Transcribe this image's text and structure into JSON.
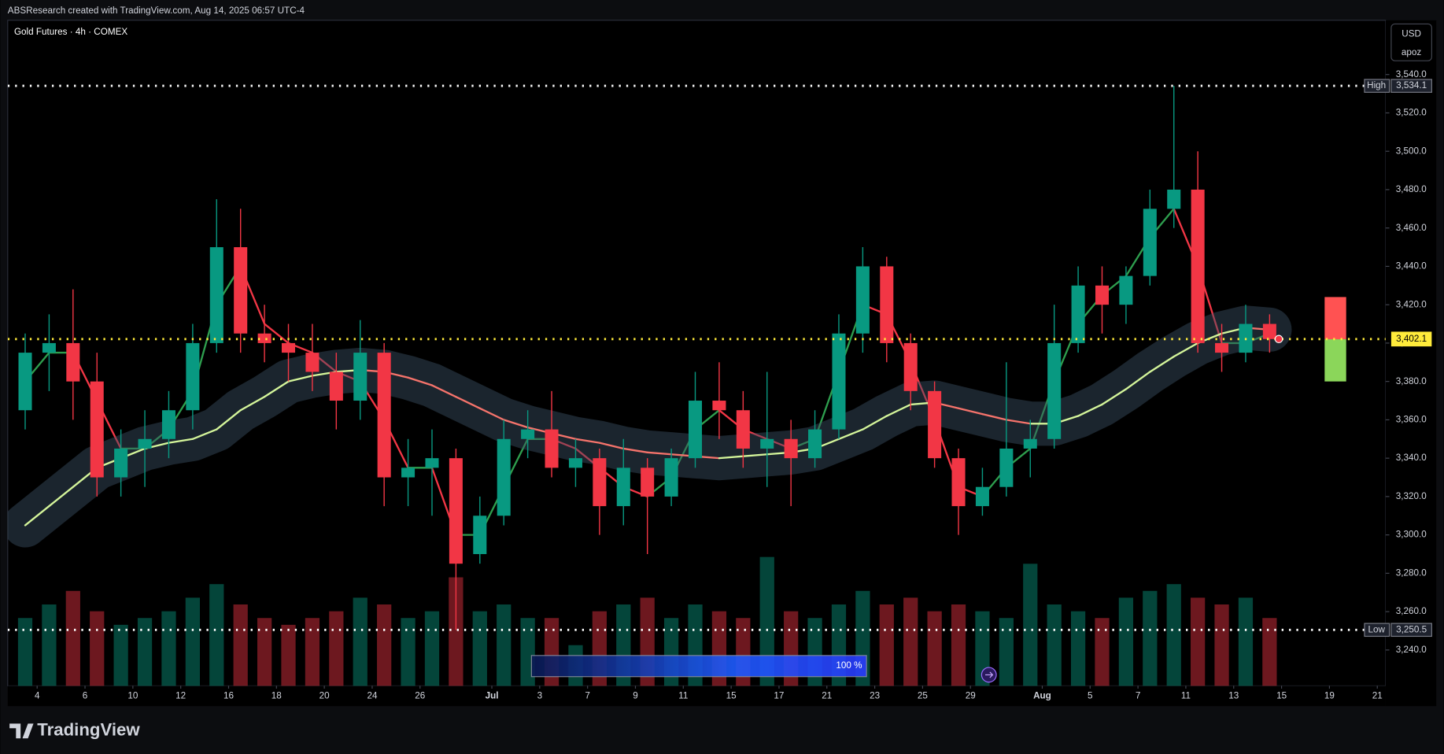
{
  "header": "ABSResearch created with TradingView.com, Aug 14, 2025 06:57 UTC-4",
  "brand": "TradingView",
  "currency": "USD",
  "unit": "apoz",
  "replay_label": "100 %",
  "chart_data": {
    "type": "candlestick",
    "title": "Gold Futures · 4h · COMEX",
    "x": [
      0,
      1,
      2,
      3,
      4,
      5,
      6,
      7,
      8,
      9,
      10,
      11,
      12,
      13,
      14,
      15,
      16,
      17,
      18,
      19,
      20,
      21,
      22,
      23,
      24,
      25,
      26,
      27,
      28,
      29,
      30,
      31,
      32,
      33,
      34,
      35,
      36,
      37,
      38,
      39,
      40,
      41,
      42,
      43,
      44,
      45,
      46,
      47,
      48,
      49,
      50,
      51,
      52
    ],
    "open": [
      3365,
      3395,
      3400,
      3380,
      3330,
      3345,
      3350,
      3365,
      3400,
      3450,
      3405,
      3400,
      3395,
      3385,
      3370,
      3395,
      3330,
      3335,
      3340,
      3290,
      3310,
      3350,
      3355,
      3335,
      3340,
      3315,
      3335,
      3320,
      3340,
      3370,
      3365,
      3345,
      3350,
      3340,
      3355,
      3405,
      3440,
      3400,
      3375,
      3340,
      3315,
      3325,
      3345,
      3350,
      3400,
      3430,
      3420,
      3435,
      3470,
      3480,
      3400,
      3395,
      3410
    ],
    "high": [
      3405,
      3415,
      3428,
      3395,
      3355,
      3365,
      3375,
      3410,
      3475,
      3470,
      3420,
      3410,
      3410,
      3395,
      3412,
      3400,
      3350,
      3355,
      3345,
      3320,
      3360,
      3365,
      3375,
      3350,
      3345,
      3350,
      3340,
      3345,
      3385,
      3390,
      3375,
      3385,
      3360,
      3365,
      3415,
      3450,
      3445,
      3405,
      3380,
      3345,
      3335,
      3390,
      3360,
      3420,
      3440,
      3440,
      3440,
      3480,
      3534.1,
      3500,
      3410,
      3420,
      3415
    ],
    "low": [
      3355,
      3375,
      3360,
      3320,
      3320,
      3325,
      3340,
      3355,
      3395,
      3395,
      3390,
      3380,
      3375,
      3355,
      3360,
      3315,
      3315,
      3310,
      3250.5,
      3285,
      3305,
      3340,
      3330,
      3325,
      3300,
      3305,
      3290,
      3315,
      3335,
      3350,
      3335,
      3325,
      3315,
      3335,
      3350,
      3395,
      3390,
      3365,
      3335,
      3300,
      3310,
      3320,
      3330,
      3345,
      3395,
      3405,
      3410,
      3430,
      3460,
      3395,
      3385,
      3390,
      3395
    ],
    "close": [
      3395,
      3400,
      3380,
      3330,
      3345,
      3350,
      3365,
      3400,
      3450,
      3405,
      3400,
      3395,
      3385,
      3370,
      3395,
      3330,
      3335,
      3340,
      3285,
      3310,
      3350,
      3355,
      3335,
      3340,
      3315,
      3335,
      3320,
      3340,
      3370,
      3365,
      3345,
      3350,
      3340,
      3355,
      3405,
      3440,
      3400,
      3375,
      3340,
      3315,
      3325,
      3345,
      3350,
      3400,
      3430,
      3420,
      3435,
      3470,
      3480,
      3400,
      3395,
      3410,
      3402.1
    ],
    "volume": [
      50,
      60,
      70,
      55,
      45,
      50,
      55,
      65,
      75,
      60,
      50,
      45,
      50,
      55,
      65,
      60,
      50,
      55,
      80,
      55,
      60,
      50,
      50,
      30,
      55,
      60,
      65,
      50,
      60,
      55,
      50,
      95,
      55,
      50,
      60,
      70,
      60,
      65,
      55,
      60,
      55,
      50,
      90,
      60,
      55,
      50,
      65,
      70,
      75,
      65,
      60,
      65,
      50
    ],
    "up_color": "#089981",
    "down_color": "#f23645",
    "overlays": [
      {
        "up_color": "#2e9e4e",
        "down_color": "#f23645",
        "width": 2,
        "values": [
          3380,
          3395,
          3395,
          3370,
          3345,
          3345,
          3355,
          3375,
          3420,
          3440,
          3410,
          3400,
          3395,
          3385,
          3380,
          3360,
          3335,
          3335,
          3300,
          3300,
          3325,
          3350,
          3350,
          3345,
          3335,
          3325,
          3320,
          3330,
          3355,
          3365,
          3355,
          3350,
          3345,
          3350,
          3385,
          3420,
          3415,
          3390,
          3360,
          3325,
          3320,
          3335,
          3345,
          3380,
          3410,
          3425,
          3435,
          3455,
          3470,
          3440,
          3400,
          3400,
          3405
        ]
      },
      {
        "up_color": "#d4f59a",
        "down_color": "#f5736b",
        "width": 2,
        "band": true,
        "values": [
          3305,
          3315,
          3325,
          3335,
          3340,
          3345,
          3348,
          3350,
          3355,
          3365,
          3372,
          3380,
          3383,
          3385,
          3386,
          3385,
          3382,
          3378,
          3372,
          3366,
          3360,
          3356,
          3353,
          3350,
          3348,
          3345,
          3343,
          3342,
          3341,
          3340,
          3341,
          3342,
          3343,
          3345,
          3350,
          3355,
          3362,
          3368,
          3369,
          3366,
          3363,
          3360,
          3358,
          3358,
          3362,
          3368,
          3376,
          3385,
          3393,
          3400,
          3405,
          3408,
          3407
        ]
      }
    ],
    "levels": [
      {
        "label": "High",
        "value": 3534.1,
        "value_label": "3,534.1",
        "color": "#ffffff"
      },
      {
        "label": "Low",
        "value": 3250.5,
        "value_label": "3,250.5",
        "color": "#ffffff"
      }
    ],
    "last": {
      "value": 3402.1,
      "value_label": "3,402.1",
      "color": "#ffeb3b"
    },
    "position": {
      "x": [
        54.3,
        55.2
      ],
      "stop": 3424,
      "entry": 3402,
      "target": 3380,
      "stop_color": "#ff5252",
      "target_color": "#8bd65a"
    },
    "xlim": [
      -0.73,
      56.85
    ],
    "ylim": [
      3221.3,
      3568.3
    ],
    "xticks": [
      {
        "value": 0.5,
        "label": "4"
      },
      {
        "value": 2.5,
        "label": "6"
      },
      {
        "value": 4.5,
        "label": "10"
      },
      {
        "value": 6.5,
        "label": "12"
      },
      {
        "value": 8.5,
        "label": "16"
      },
      {
        "value": 10.5,
        "label": "18"
      },
      {
        "value": 12.5,
        "label": "20"
      },
      {
        "value": 14.5,
        "label": "24"
      },
      {
        "value": 16.5,
        "label": "26"
      },
      {
        "value": 19.5,
        "label": "Jul"
      },
      {
        "value": 21.5,
        "label": "3"
      },
      {
        "value": 23.5,
        "label": "7"
      },
      {
        "value": 25.5,
        "label": "9"
      },
      {
        "value": 27.5,
        "label": "11"
      },
      {
        "value": 29.5,
        "label": "15"
      },
      {
        "value": 31.5,
        "label": "17"
      },
      {
        "value": 33.5,
        "label": "21"
      },
      {
        "value": 35.5,
        "label": "23"
      },
      {
        "value": 37.5,
        "label": "25"
      },
      {
        "value": 39.5,
        "label": "29"
      },
      {
        "value": 42.5,
        "label": "Aug"
      },
      {
        "value": 44.5,
        "label": "5"
      },
      {
        "value": 46.5,
        "label": "7"
      },
      {
        "value": 48.5,
        "label": "11"
      },
      {
        "value": 50.5,
        "label": "13"
      },
      {
        "value": 52.5,
        "label": "15"
      },
      {
        "value": 54.5,
        "label": "19"
      },
      {
        "value": 56.5,
        "label": "21"
      }
    ],
    "yticks": [
      {
        "value": 3540,
        "label": "3,540.0"
      },
      {
        "value": 3520,
        "label": "3,520.0"
      },
      {
        "value": 3500,
        "label": "3,500.0"
      },
      {
        "value": 3480,
        "label": "3,480.0"
      },
      {
        "value": 3460,
        "label": "3,460.0"
      },
      {
        "value": 3440,
        "label": "3,440.0"
      },
      {
        "value": 3420,
        "label": "3,420.0"
      },
      {
        "value": 3400,
        "label": "3,400.0"
      },
      {
        "value": 3380,
        "label": "3,380.0"
      },
      {
        "value": 3360,
        "label": "3,360.0"
      },
      {
        "value": 3340,
        "label": "3,340.0"
      },
      {
        "value": 3320,
        "label": "3,320.0"
      },
      {
        "value": 3300,
        "label": "3,300.0"
      },
      {
        "value": 3280,
        "label": "3,280.0"
      },
      {
        "value": 3260,
        "label": "3,260.0"
      },
      {
        "value": 3240,
        "label": "3,240.0"
      }
    ],
    "grid": false
  }
}
